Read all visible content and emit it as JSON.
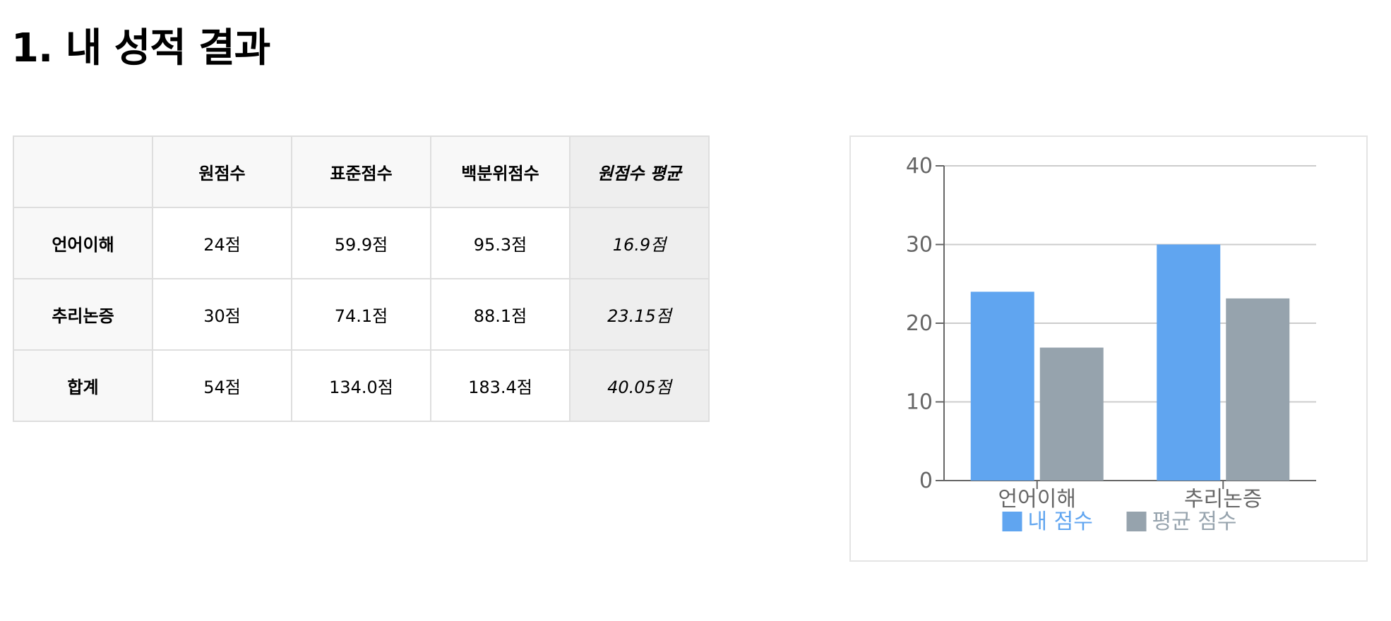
{
  "page_title": "1. 내 성적 결과",
  "table": {
    "corner": "",
    "columns": [
      "원점수",
      "표준점수",
      "백분위점수",
      "원점수 평균"
    ],
    "rows": [
      {
        "label": "언어이해",
        "cells": [
          "24점",
          "59.9점",
          "95.3점",
          "16.9점"
        ]
      },
      {
        "label": "추리논증",
        "cells": [
          "30점",
          "74.1점",
          "88.1점",
          "23.15점"
        ]
      },
      {
        "label": "합계",
        "cells": [
          "54점",
          "134.0점",
          "183.4점",
          "40.05점"
        ]
      }
    ]
  },
  "chart_data": {
    "type": "bar",
    "categories": [
      "언어이해",
      "추리논증"
    ],
    "series": [
      {
        "name": "내 점수",
        "values": [
          24,
          30
        ],
        "color": "#60a5f0"
      },
      {
        "name": "평균 점수",
        "values": [
          16.9,
          23.15
        ],
        "color": "#96a3ad"
      }
    ],
    "ylim": [
      0,
      40
    ],
    "yticks": [
      0,
      10,
      20,
      30,
      40
    ],
    "grid": true,
    "legend": "bottom"
  }
}
